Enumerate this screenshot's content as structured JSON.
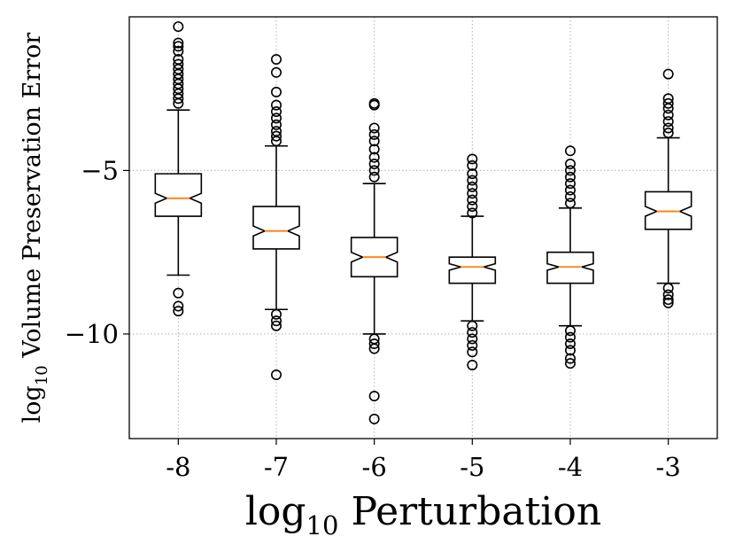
{
  "chart_data": {
    "type": "boxplot",
    "notched": true,
    "xlabel": "log",
    "xlabel_sub": "10",
    "xlabel_rest": " Perturbation",
    "ylabel": "log",
    "ylabel_sub": "10",
    "ylabel_rest": " Volume Preservation Error",
    "categories": [
      "-8",
      "-7",
      "-6",
      "-5",
      "-4",
      "-3"
    ],
    "ylim": [
      -13.2,
      -0.3
    ],
    "yticks": [
      -5,
      -10
    ],
    "ytick_labels": [
      "−5",
      "−10"
    ],
    "grid": true,
    "boxes": [
      {
        "label": "-8",
        "whisker_low": -8.2,
        "q1": -6.4,
        "median": -5.85,
        "q3": -5.1,
        "whisker_high": -3.15,
        "notch_low": -6.0,
        "notch_high": -5.7,
        "fliers": [
          -0.6,
          -1.1,
          -1.2,
          -1.35,
          -1.6,
          -1.75,
          -1.9,
          -2.05,
          -2.2,
          -2.35,
          -2.5,
          -2.65,
          -2.8,
          -2.95,
          -8.75,
          -9.15,
          -9.3
        ]
      },
      {
        "label": "-7",
        "whisker_low": -9.25,
        "q1": -7.4,
        "median": -6.85,
        "q3": -6.1,
        "whisker_high": -4.25,
        "notch_low": -7.0,
        "notch_high": -6.7,
        "fliers": [
          -1.6,
          -2.0,
          -2.6,
          -3.0,
          -3.2,
          -3.4,
          -3.6,
          -3.8,
          -3.95,
          -4.1,
          -9.4,
          -9.6,
          -9.75,
          -11.25
        ]
      },
      {
        "label": "-6",
        "whisker_low": -10.0,
        "q1": -8.25,
        "median": -7.65,
        "q3": -7.05,
        "whisker_high": -5.4,
        "notch_low": -7.8,
        "notch_high": -7.5,
        "fliers": [
          -2.95,
          -3.0,
          -3.7,
          -3.9,
          -4.1,
          -4.35,
          -4.6,
          -4.8,
          -5.0,
          -5.2,
          -10.15,
          -10.3,
          -10.45,
          -11.9,
          -12.6
        ]
      },
      {
        "label": "-5",
        "whisker_low": -9.6,
        "q1": -8.45,
        "median": -7.95,
        "q3": -7.65,
        "whisker_high": -6.4,
        "notch_low": -8.05,
        "notch_high": -7.85,
        "fliers": [
          -4.65,
          -4.85,
          -5.1,
          -5.3,
          -5.5,
          -5.7,
          -5.9,
          -6.1,
          -6.3,
          -9.75,
          -9.95,
          -10.15,
          -10.35,
          -10.55,
          -10.95
        ]
      },
      {
        "label": "-4",
        "whisker_low": -9.75,
        "q1": -8.45,
        "median": -7.95,
        "q3": -7.5,
        "whisker_high": -6.15,
        "notch_low": -8.05,
        "notch_high": -7.85,
        "fliers": [
          -4.4,
          -4.8,
          -5.0,
          -5.2,
          -5.4,
          -5.6,
          -5.8,
          -6.0,
          -9.9,
          -10.1,
          -10.3,
          -10.5,
          -10.75,
          -10.9
        ]
      },
      {
        "label": "-3",
        "whisker_low": -8.45,
        "q1": -6.8,
        "median": -6.25,
        "q3": -5.65,
        "whisker_high": -4.0,
        "notch_low": -6.4,
        "notch_high": -6.1,
        "fliers": [
          -2.05,
          -2.8,
          -2.95,
          -3.1,
          -3.3,
          -3.5,
          -3.7,
          -3.85,
          -8.6,
          -8.8,
          -8.95,
          -9.05
        ]
      }
    ],
    "colors": {
      "box": "#000000",
      "median": "#ff7f0e",
      "grid": "#b0b0b0"
    }
  }
}
